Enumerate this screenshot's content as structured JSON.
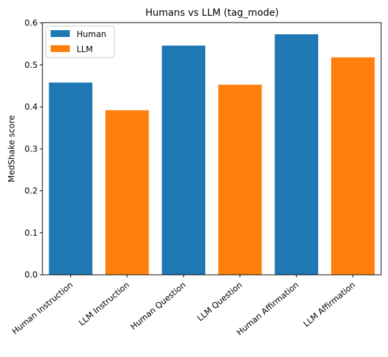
{
  "chart_data": {
    "type": "bar",
    "title": "Humans vs LLM (tag_mode)",
    "xlabel": "",
    "ylabel": "MedShake score",
    "ylim": [
      0,
      0.6
    ],
    "yticks": [
      "0.0",
      "0.1",
      "0.2",
      "0.3",
      "0.4",
      "0.5",
      "0.6"
    ],
    "categories": [
      "Human Instruction",
      "LLM Instruction",
      "Human Question",
      "LLM Question",
      "Human Affirmation",
      "LLM Affirmation"
    ],
    "values": [
      0.458,
      0.392,
      0.546,
      0.453,
      0.573,
      0.518
    ],
    "bar_series": [
      "Human",
      "LLM",
      "Human",
      "LLM",
      "Human",
      "LLM"
    ],
    "series_colors": {
      "Human": "#1f77b4",
      "LLM": "#ff7f0e"
    },
    "legend": {
      "position": "top-left",
      "entries": [
        {
          "name": "Human",
          "color": "#1f77b4"
        },
        {
          "name": "LLM",
          "color": "#ff7f0e"
        }
      ]
    },
    "grid": false
  }
}
